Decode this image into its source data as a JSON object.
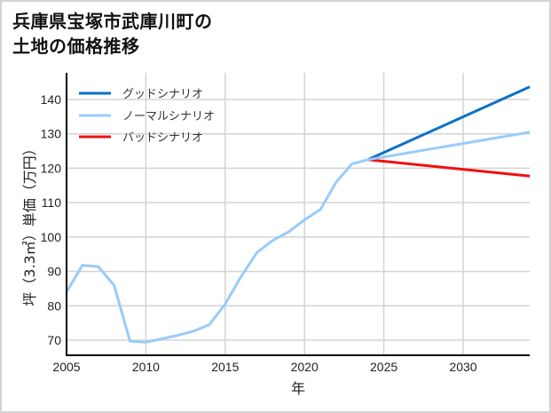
{
  "title": {
    "line1": "兵庫県宝塚市武庫川町の",
    "line2": "土地の価格推移"
  },
  "chart_data": {
    "type": "line",
    "title": "兵庫県宝塚市武庫川町の土地の価格推移",
    "xlabel": "年",
    "ylabel": "坪（3.3㎡）単価（万円）",
    "xlim": [
      2005,
      2034.2
    ],
    "ylim": [
      66,
      147
    ],
    "xticks": [
      2005,
      2010,
      2015,
      2020,
      2025,
      2030
    ],
    "yticks": [
      70,
      80,
      90,
      100,
      110,
      120,
      130,
      140
    ],
    "grid": true,
    "legend_position": "upper left",
    "series": [
      {
        "name": "グッドシナリオ",
        "color": "#0a72c8",
        "x": [
          2024,
          2034.2
        ],
        "values": [
          122.5,
          143.7
        ]
      },
      {
        "name": "ノーマルシナリオ",
        "color": "#99cbfa",
        "x": [
          2005,
          2006,
          2007,
          2008,
          2009,
          2010,
          2011,
          2012,
          2013,
          2014,
          2015,
          2016,
          2017,
          2018,
          2019,
          2020,
          2021,
          2022,
          2023,
          2024,
          2034.2
        ],
        "values": [
          84.0,
          91.8,
          91.4,
          86.0,
          69.7,
          69.4,
          70.4,
          71.4,
          72.6,
          74.5,
          80.5,
          88.5,
          95.5,
          99.0,
          101.5,
          105.0,
          108.0,
          116.0,
          121.3,
          122.5,
          130.5
        ]
      },
      {
        "name": "バッドシナリオ",
        "color": "#f01010",
        "x": [
          2024,
          2034.2
        ],
        "values": [
          122.5,
          117.7
        ]
      }
    ]
  },
  "legend": {
    "items": [
      {
        "label": "グッドシナリオ",
        "color": "#0a72c8"
      },
      {
        "label": "ノーマルシナリオ",
        "color": "#99cbfa"
      },
      {
        "label": "バッドシナリオ",
        "color": "#f01010"
      }
    ]
  },
  "axes": {
    "xlabel": "年",
    "ylabel": "坪（3.3㎡）単価（万円）"
  }
}
